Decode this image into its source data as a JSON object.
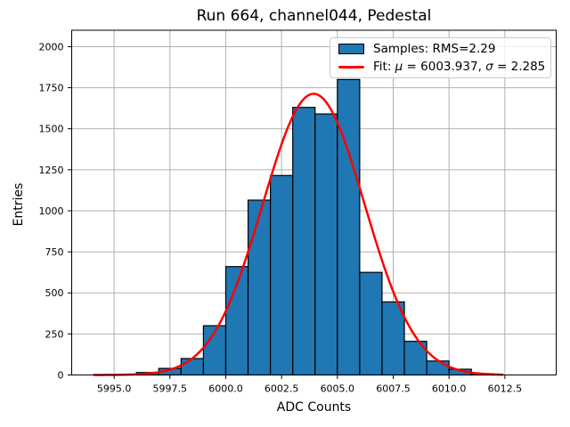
{
  "chart_data": {
    "type": "bar",
    "subtype": "histogram-with-gaussian-fit",
    "title": "Run 664, channel044, Pedestal",
    "xlabel": "ADC Counts",
    "ylabel": "Entries",
    "xlim": [
      5993.1,
      6014.8
    ],
    "ylim": [
      0,
      2100
    ],
    "grid": true,
    "grid_color": "#b0b0b0",
    "xticks": {
      "values": [
        5995.0,
        5997.5,
        6000.0,
        6002.5,
        6005.0,
        6007.5,
        6010.0,
        6012.5
      ],
      "labels": [
        "5995.0",
        "5997.5",
        "6000.0",
        "6002.5",
        "6005.0",
        "6007.5",
        "6010.0",
        "6012.5"
      ]
    },
    "yticks": {
      "values": [
        0,
        250,
        500,
        750,
        1000,
        1250,
        1500,
        1750,
        2000
      ],
      "labels": [
        "0",
        "250",
        "500",
        "750",
        "1000",
        "1250",
        "1500",
        "1750",
        "2000"
      ]
    },
    "histogram": {
      "bin_edges": [
        5996,
        5997,
        5998,
        5999,
        6000,
        6001,
        6002,
        6003,
        6004,
        6005,
        6006,
        6007,
        6008,
        6009,
        6010,
        6011,
        6012
      ],
      "counts": [
        15,
        40,
        100,
        300,
        660,
        1065,
        1215,
        1630,
        1590,
        1800,
        625,
        445,
        205,
        85,
        35,
        8
      ],
      "fill_color": "#1f77b4",
      "edge_color": "#000000"
    },
    "fit": {
      "mu": 6003.937,
      "sigma": 2.285,
      "peak": 1713,
      "x_start": 5994.1,
      "x_end": 6012.4,
      "color": "#ff0000"
    },
    "legend": [
      {
        "marker": "patch",
        "label": "Samples: RMS=2.29"
      },
      {
        "marker": "line",
        "label": "Fit: μ = 6003.937, σ = 2.285",
        "parts": [
          "Fit: ",
          "μ",
          " = 6003.937, ",
          "σ",
          " = 2.285"
        ]
      }
    ]
  }
}
